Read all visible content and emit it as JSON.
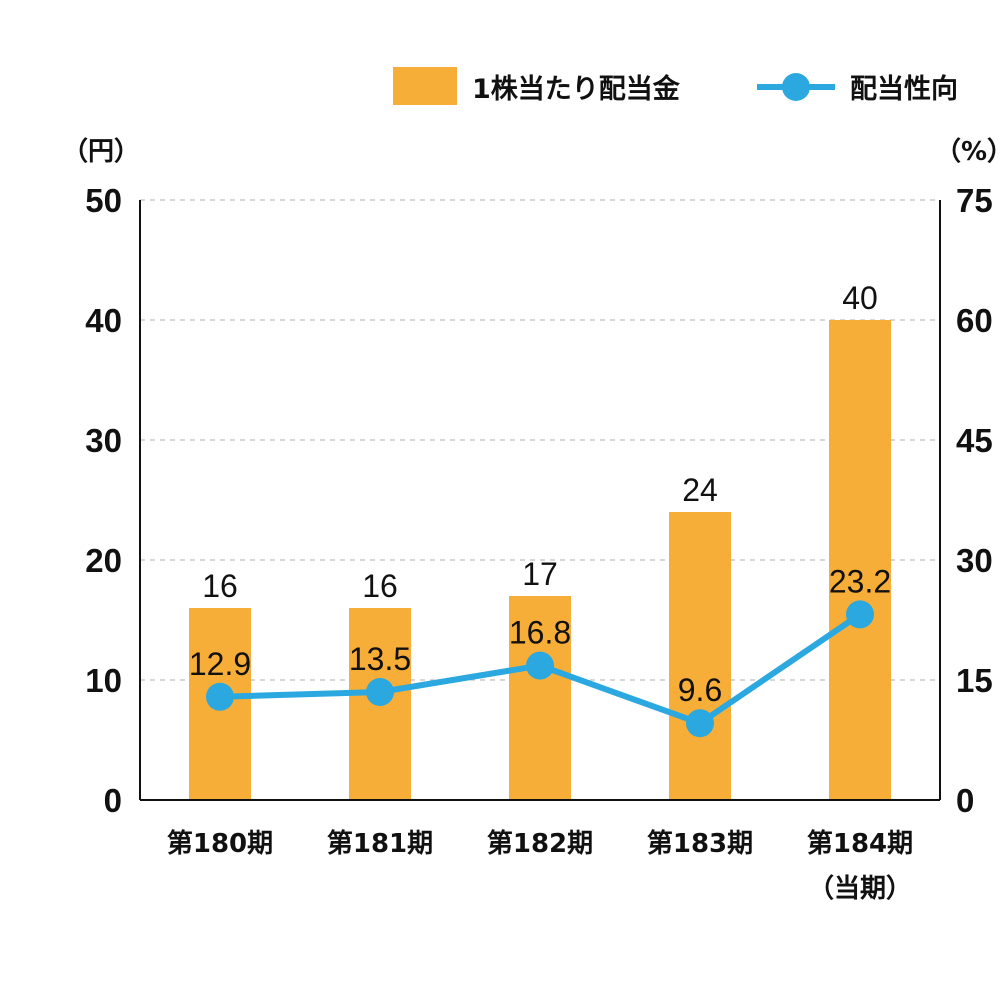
{
  "legend": {
    "bar_label": "1株当たり配当金",
    "line_label": "配当性向"
  },
  "axes": {
    "left_unit": "（円）",
    "right_unit": "（%）",
    "left_ticks": [
      "0",
      "10",
      "20",
      "30",
      "40",
      "50"
    ],
    "right_ticks": [
      "0",
      "15",
      "30",
      "45",
      "60",
      "75"
    ]
  },
  "categories": [
    {
      "line1": "第180期",
      "line2": ""
    },
    {
      "line1": "第181期",
      "line2": ""
    },
    {
      "line1": "第182期",
      "line2": ""
    },
    {
      "line1": "第183期",
      "line2": ""
    },
    {
      "line1": "第184期",
      "line2": "（当期）"
    }
  ],
  "colors": {
    "bar": "#F7AE38",
    "line": "#2AA8DF",
    "axis": "#111111",
    "grid": "#BDBDBD"
  },
  "chart_data": {
    "type": "bar",
    "categories": [
      "第180期",
      "第181期",
      "第182期",
      "第183期",
      "第184期（当期）"
    ],
    "series": [
      {
        "name": "1株当たり配当金",
        "type": "bar",
        "axis": "left",
        "values": [
          16,
          16,
          17,
          24,
          40
        ],
        "labels": [
          "16",
          "16",
          "17",
          "24",
          "40"
        ]
      },
      {
        "name": "配当性向",
        "type": "line",
        "axis": "right",
        "values": [
          12.9,
          13.5,
          16.8,
          9.6,
          23.2
        ],
        "labels": [
          "12.9",
          "13.5",
          "16.8",
          "9.6",
          "23.2"
        ]
      }
    ],
    "ylim_left": [
      0,
      50
    ],
    "ylim_right": [
      0,
      75
    ],
    "ylabel_left": "（円）",
    "ylabel_right": "（%）",
    "grid": true,
    "legend_position": "top-right"
  }
}
